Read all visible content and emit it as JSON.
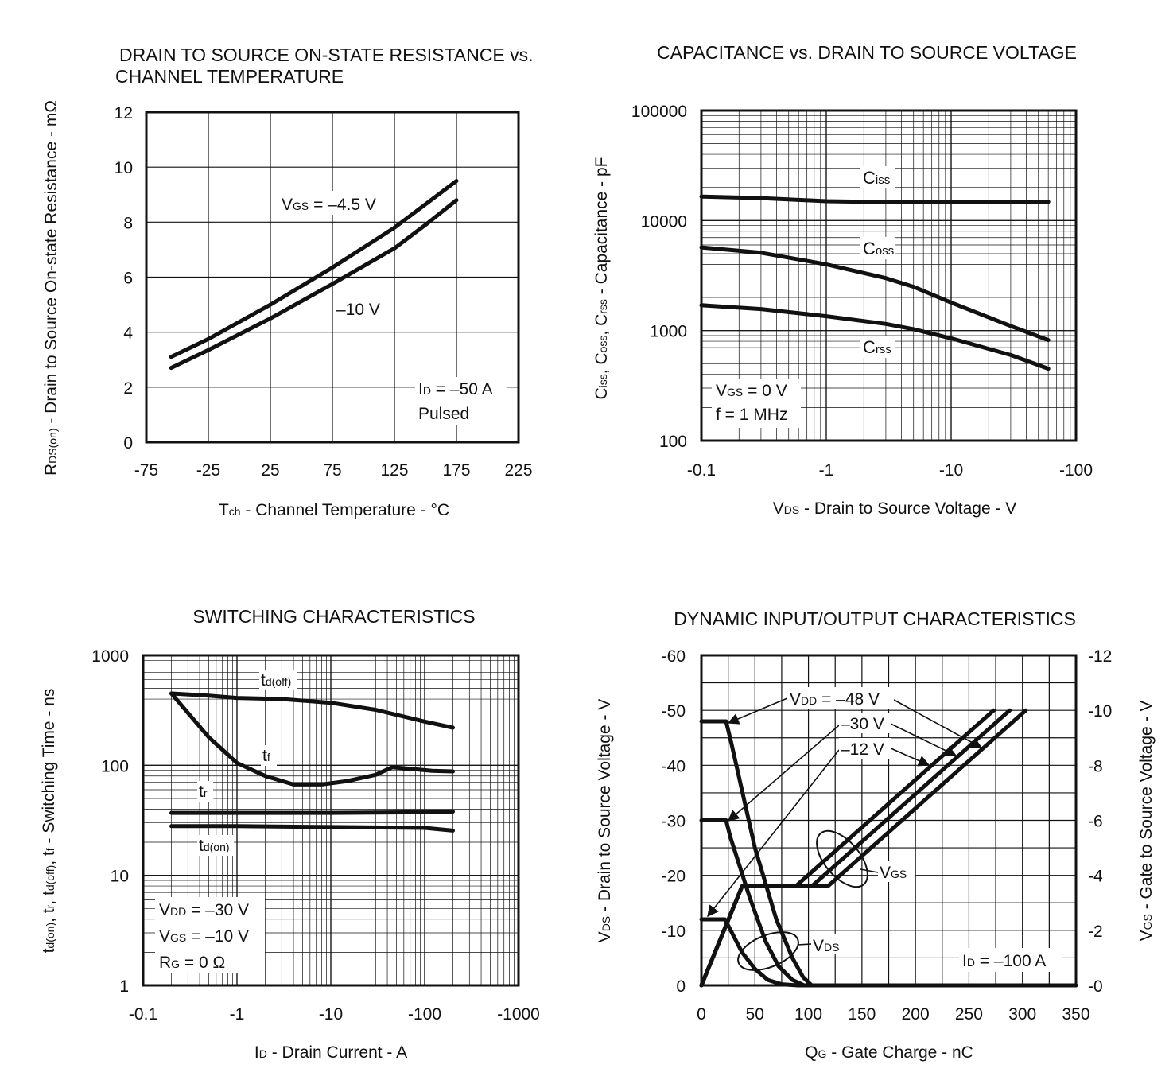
{
  "chart_data": [
    {
      "id": "rds",
      "type": "line",
      "title_lines": [
        "DRAIN TO SOURCE ON-STATE RESISTANCE vs.",
        "CHANNEL TEMPERATURE"
      ],
      "xlabel": "Tch - Channel Temperature - °C",
      "ylabel": "RDS(on) - Drain to Source On-state Resistance - mΩ",
      "xscale": "linear",
      "yscale": "linear",
      "xlim": [
        -75,
        225
      ],
      "ylim": [
        0,
        12
      ],
      "xticks": [
        -75,
        -25,
        25,
        75,
        125,
        175,
        225
      ],
      "yticks": [
        0,
        2,
        4,
        6,
        8,
        10,
        12
      ],
      "grid": true,
      "series": [
        {
          "name": "VGS = –4.5 V",
          "x": [
            -55,
            -25,
            25,
            75,
            125,
            150,
            175
          ],
          "y": [
            3.1,
            3.75,
            5.0,
            6.35,
            7.8,
            8.65,
            9.5
          ]
        },
        {
          "name": "–10 V",
          "x": [
            -55,
            -25,
            25,
            75,
            125,
            150,
            175
          ],
          "y": [
            2.7,
            3.35,
            4.5,
            5.75,
            7.05,
            7.9,
            8.8
          ]
        }
      ],
      "annotations": [
        "VGS = –4.5 V",
        "–10 V",
        "ID = –50 A",
        "Pulsed"
      ]
    },
    {
      "id": "cap",
      "type": "line",
      "title_lines": [
        "CAPACITANCE vs. DRAIN TO SOURCE VOLTAGE"
      ],
      "xlabel": "VDS - Drain to Source Voltage - V",
      "ylabel": "Ciss, Coss, Crss - Capacitance - pF",
      "xscale": "log",
      "yscale": "log",
      "xlim": [
        -0.1,
        -100
      ],
      "ylim": [
        100,
        100000
      ],
      "xticks": [
        "-0.1",
        "-1",
        "-10",
        "-100"
      ],
      "yticks": [
        "100",
        "1000",
        "10000",
        "100000"
      ],
      "grid": true,
      "series": [
        {
          "name": "Ciss",
          "x": [
            -0.1,
            -0.3,
            -1,
            -2,
            -5,
            -10,
            -60
          ],
          "y": [
            16500,
            16000,
            15000,
            14800,
            14800,
            14800,
            14800
          ]
        },
        {
          "name": "Coss",
          "x": [
            -0.1,
            -0.3,
            -1,
            -3,
            -5,
            -10,
            -30,
            -60
          ],
          "y": [
            5700,
            5100,
            4000,
            3000,
            2500,
            1800,
            1100,
            820
          ]
        },
        {
          "name": "Crss",
          "x": [
            -0.1,
            -0.3,
            -1,
            -3,
            -5,
            -10,
            -30,
            -60
          ],
          "y": [
            1700,
            1570,
            1350,
            1150,
            1030,
            850,
            600,
            450
          ]
        }
      ],
      "annotations": [
        "VGS = 0 V",
        "f = 1 MHz"
      ]
    },
    {
      "id": "sw",
      "type": "line",
      "title_lines": [
        "SWITCHING CHARACTERISTICS"
      ],
      "xlabel": "ID - Drain Current - A",
      "ylabel": "td(on), tr, td(off), tf - Switching Time - ns",
      "xscale": "log",
      "yscale": "log",
      "xlim": [
        -0.1,
        -1000
      ],
      "ylim": [
        1,
        1000
      ],
      "xticks": [
        "-0.1",
        "-1",
        "-10",
        "-100",
        "-1000"
      ],
      "yticks": [
        "1",
        "10",
        "100",
        "1000"
      ],
      "grid": true,
      "series": [
        {
          "name": "td(off)",
          "x": [
            -0.2,
            -0.5,
            -1,
            -3,
            -10,
            -30,
            -100,
            -200
          ],
          "y": [
            450,
            430,
            410,
            400,
            370,
            320,
            250,
            220
          ]
        },
        {
          "name": "tf",
          "x": [
            -0.2,
            -0.5,
            -1,
            -2,
            -4,
            -8,
            -15,
            -30,
            -45,
            -70,
            -120,
            -200
          ],
          "y": [
            450,
            180,
            105,
            80,
            67,
            67,
            72,
            82,
            96,
            93,
            89,
            88
          ]
        },
        {
          "name": "tr",
          "x": [
            -0.2,
            -1,
            -10,
            -100,
            -200
          ],
          "y": [
            37,
            37,
            37,
            37.5,
            38
          ]
        },
        {
          "name": "td(on)",
          "x": [
            -0.2,
            -1,
            -10,
            -100,
            -200
          ],
          "y": [
            28,
            28,
            27.5,
            27,
            25.5
          ]
        }
      ],
      "annotations": [
        "VDD = –30 V",
        "VGS = –10 V",
        "RG = 0 Ω"
      ]
    },
    {
      "id": "dyn",
      "type": "line",
      "title_lines": [
        "DYNAMIC INPUT/OUTPUT CHARACTERISTICS"
      ],
      "xlabel": "QG - Gate Charge - nC",
      "ylabel": "VDS - Drain to Source Voltage - V",
      "ylabel_right": "VGS - Gate to Source Voltage - V",
      "xscale": "linear",
      "yscale": "linear",
      "xlim": [
        0,
        350
      ],
      "ylim": [
        0,
        -60
      ],
      "ylim_right": [
        0,
        -12
      ],
      "xticks": [
        "0",
        "50",
        "100",
        "150",
        "200",
        "250",
        "300",
        "350"
      ],
      "yticks": [
        "0",
        "-10",
        "-20",
        "-30",
        "-40",
        "-50",
        "-60"
      ],
      "yticks_right": [
        "-0",
        "-2",
        "-4",
        "-6",
        "-8",
        "-10",
        "-12"
      ],
      "grid": true,
      "series": [
        {
          "name": "VDS VDD = –48 V",
          "axis": "left",
          "x": [
            0,
            23,
            28,
            50,
            70,
            85,
            95,
            103,
            350
          ],
          "y": [
            -48,
            -48,
            -44,
            -25,
            -12,
            -5,
            -1.5,
            0,
            0
          ]
        },
        {
          "name": "VDS VDD = –30 V",
          "axis": "left",
          "x": [
            0,
            23,
            27,
            45,
            60,
            72,
            85,
            96,
            350
          ],
          "y": [
            -30,
            -30,
            -27,
            -16,
            -8,
            -3.5,
            -1,
            0,
            0
          ]
        },
        {
          "name": "VDS VDD = –12 V",
          "axis": "left",
          "x": [
            0,
            22,
            26,
            38,
            50,
            62,
            75,
            90,
            350
          ],
          "y": [
            -12,
            -12,
            -10.5,
            -6,
            -3,
            -1,
            -0.2,
            0,
            0
          ]
        },
        {
          "name": "VGS VDD = –12 V",
          "axis": "right",
          "x": [
            0,
            38,
            88,
            273
          ],
          "y": [
            0,
            -3.6,
            -3.6,
            -10
          ]
        },
        {
          "name": "VGS VDD = –30 V",
          "axis": "right",
          "x": [
            0,
            38,
            103,
            288
          ],
          "y": [
            0,
            -3.6,
            -3.6,
            -10
          ]
        },
        {
          "name": "VGS VDD = –48 V",
          "axis": "right",
          "x": [
            0,
            38,
            118,
            303
          ],
          "y": [
            0,
            -3.6,
            -3.6,
            -10
          ]
        }
      ],
      "annotations": [
        "VDD = –48 V",
        "–30 V",
        "–12 V",
        "VGS",
        "VDS",
        "ID = –100 A"
      ]
    }
  ]
}
